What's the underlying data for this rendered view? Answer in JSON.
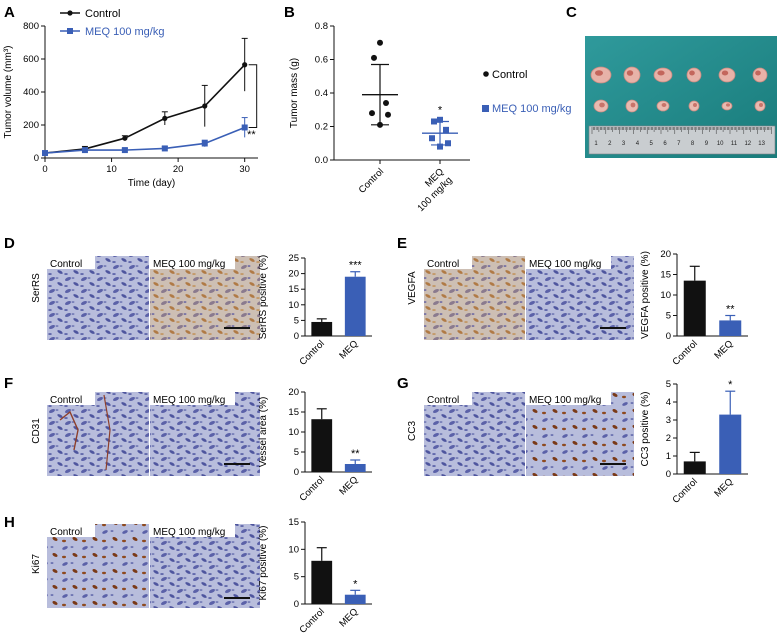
{
  "panels": {
    "A": "A",
    "B": "B",
    "C": "C",
    "D": "D",
    "E": "E",
    "F": "F",
    "G": "G",
    "H": "H"
  },
  "colors": {
    "control": "#111111",
    "meq": "#3a5fb6",
    "tissue": "#8f96c4",
    "ruler_bg": "#5aa8a8"
  },
  "legend": {
    "control": "Control",
    "meq": "MEQ 100 mg/kg"
  },
  "micrographs": {
    "control_label": "Control",
    "meq_label": "MEQ 100 mg/kg",
    "row_labels": {
      "D": "SerRS",
      "E": "VEGFA",
      "F": "CD31",
      "G": "CC3",
      "H": "Ki67"
    }
  },
  "ruler": {
    "numbers": [
      "1",
      "2",
      "3",
      "4",
      "5",
      "6",
      "7",
      "8",
      "9",
      "10",
      "11",
      "12",
      "13"
    ]
  },
  "chart_data": [
    {
      "panel": "A",
      "type": "line",
      "xlabel": "Time (day)",
      "ylabel": "Tumor volume (mm³)",
      "xlim": [
        0,
        32
      ],
      "ylim": [
        0,
        800
      ],
      "xticks": [
        0,
        10,
        20,
        30
      ],
      "yticks": [
        0,
        200,
        400,
        600,
        800
      ],
      "x": [
        0,
        6,
        12,
        18,
        24,
        30
      ],
      "series": [
        {
          "name": "Control",
          "values": [
            30,
            55,
            120,
            240,
            315,
            565
          ],
          "errors": [
            10,
            15,
            15,
            40,
            125,
            160
          ]
        },
        {
          "name": "MEQ 100 mg/kg",
          "values": [
            30,
            48,
            48,
            58,
            88,
            185
          ],
          "errors": [
            10,
            10,
            10,
            12,
            20,
            60
          ]
        }
      ],
      "annotation": "**"
    },
    {
      "panel": "B",
      "type": "scatter",
      "ylabel": "Tumor mass (g)",
      "ylim": [
        0,
        0.8
      ],
      "yticks": [
        0.0,
        0.2,
        0.4,
        0.6,
        0.8
      ],
      "categories": [
        "Control",
        "MEQ 100 mg/kg"
      ],
      "series": [
        {
          "name": "Control",
          "points": [
            0.7,
            0.61,
            0.34,
            0.28,
            0.27,
            0.21
          ],
          "mean": 0.39,
          "sd": 0.18
        },
        {
          "name": "MEQ 100 mg/kg",
          "points": [
            0.24,
            0.23,
            0.18,
            0.13,
            0.1,
            0.08
          ],
          "mean": 0.16,
          "sd": 0.07
        }
      ],
      "annotation": "*"
    },
    {
      "panel": "D",
      "type": "bar",
      "ylabel": "SerRS positive (%)",
      "categories": [
        "Control",
        "MEQ"
      ],
      "values": [
        4.5,
        19
      ],
      "errors": [
        1,
        1.6
      ],
      "ylim": [
        0,
        25
      ],
      "yticks": [
        0,
        5,
        10,
        15,
        20,
        25
      ],
      "annotation": "***"
    },
    {
      "panel": "E",
      "type": "bar",
      "ylabel": "VEGFA positive (%)",
      "categories": [
        "Control",
        "MEQ"
      ],
      "values": [
        13.5,
        3.8
      ],
      "errors": [
        3.5,
        1.2
      ],
      "ylim": [
        0,
        20
      ],
      "yticks": [
        0,
        5,
        10,
        15,
        20
      ],
      "annotation": "**"
    },
    {
      "panel": "F",
      "type": "bar",
      "ylabel": "Vessel area (%)",
      "categories": [
        "Control",
        "MEQ"
      ],
      "values": [
        13.2,
        2
      ],
      "errors": [
        2.6,
        1
      ],
      "ylim": [
        0,
        20
      ],
      "yticks": [
        0,
        5,
        10,
        15,
        20
      ],
      "annotation": "**"
    },
    {
      "panel": "G",
      "type": "bar",
      "ylabel": "CC3 positive (%)",
      "categories": [
        "Control",
        "MEQ"
      ],
      "values": [
        0.7,
        3.3
      ],
      "errors": [
        0.5,
        1.3
      ],
      "ylim": [
        0,
        5
      ],
      "yticks": [
        0,
        1,
        2,
        3,
        4,
        5
      ],
      "annotation": "*"
    },
    {
      "panel": "H",
      "type": "bar",
      "ylabel": "Ki67 positive (%)",
      "categories": [
        "Control",
        "MEQ"
      ],
      "values": [
        7.9,
        1.7
      ],
      "errors": [
        2.4,
        0.8
      ],
      "ylim": [
        0,
        15
      ],
      "yticks": [
        0,
        5,
        10,
        15
      ],
      "annotation": "*"
    }
  ]
}
